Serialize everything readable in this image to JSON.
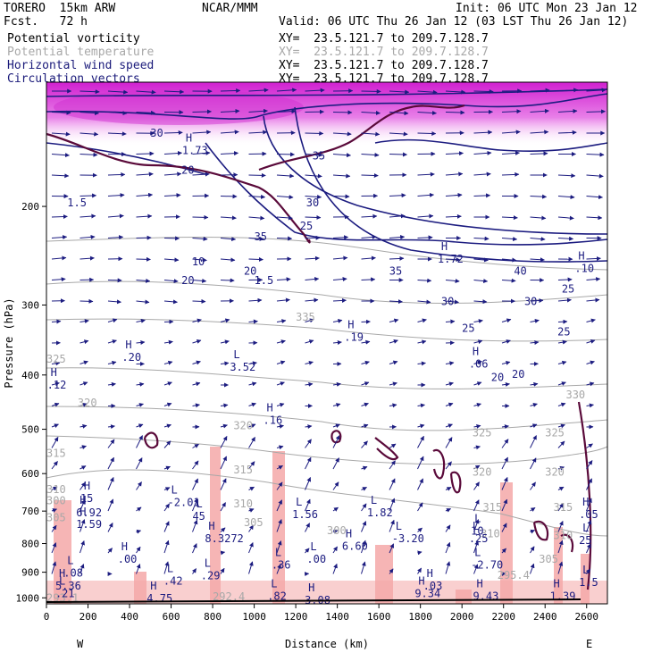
{
  "header": {
    "model": "TORERO  15km ARW",
    "center": "NCAR/MMM",
    "init": "Init: 06 UTC Mon 23 Jan 12",
    "fcst": "Fcst.   72 h",
    "valid": "Valid: 06 UTC Thu 26 Jan 12 (03 LST Thu 26 Jan 12)"
  },
  "legend": [
    {
      "label": "Potential vorticity",
      "xy": "XY=  23.5.121.7 to 209.7.128.7",
      "color": "#000000"
    },
    {
      "label": "Potential temperature",
      "xy": "XY=  23.5.121.7 to 209.7.128.7",
      "color": "#a8a8a8"
    },
    {
      "label": "Horizontal wind speed",
      "xy": "XY=  23.5.121.7 to 209.7.128.7",
      "color": "#1a1a7a"
    },
    {
      "label": "Circulation vectors",
      "xy": "XY=  23.5.121.7 to 209.7.128.7",
      "color": "#1a1a7a"
    }
  ],
  "colors": {
    "theta": "#a8a8a8",
    "wind": "#1c1c80",
    "pv": "#5a0a3a",
    "magenta": "#e040e0",
    "pink": "#f4a8a8"
  },
  "chart_data": {
    "type": "cross-section",
    "xlabel": "Distance (km)",
    "ylabel": "Pressure (hPa)",
    "x_ticks": [
      "0",
      "200",
      "400",
      "600",
      "800",
      "1000",
      "1200",
      "1400",
      "1600",
      "1800",
      "2000",
      "2200",
      "2400",
      "2600"
    ],
    "y_ticks": [
      "200",
      "300",
      "400",
      "500",
      "600",
      "700",
      "800",
      "900",
      "1000"
    ],
    "xlim": [
      0,
      2700
    ],
    "ylim": [
      1025,
      120
    ],
    "x_end_labels": {
      "left": "W",
      "right": "E"
    },
    "potential_temperature_labels": [
      {
        "text": "325",
        "x": 0,
        "p": 380
      },
      {
        "text": "320",
        "x": 150,
        "p": 455
      },
      {
        "text": "320",
        "x": 900,
        "p": 500
      },
      {
        "text": "315",
        "x": 0,
        "p": 560
      },
      {
        "text": "315",
        "x": 900,
        "p": 600
      },
      {
        "text": "310",
        "x": 0,
        "p": 650
      },
      {
        "text": "310",
        "x": 900,
        "p": 690
      },
      {
        "text": "305",
        "x": 0,
        "p": 730
      },
      {
        "text": "305",
        "x": 950,
        "p": 745
      },
      {
        "text": "300",
        "x": 1350,
        "p": 770
      },
      {
        "text": "335",
        "x": 1200,
        "p": 320
      },
      {
        "text": "330",
        "x": 2500,
        "p": 440
      },
      {
        "text": "325",
        "x": 2050,
        "p": 515
      },
      {
        "text": "325",
        "x": 2400,
        "p": 515
      },
      {
        "text": "320",
        "x": 2050,
        "p": 605
      },
      {
        "text": "320",
        "x": 2400,
        "p": 605
      },
      {
        "text": "315",
        "x": 2100,
        "p": 700
      },
      {
        "text": "315",
        "x": 2440,
        "p": 700
      },
      {
        "text": "310",
        "x": 2090,
        "p": 780
      },
      {
        "text": "310",
        "x": 2440,
        "p": 785
      },
      {
        "text": "305",
        "x": 2370,
        "p": 865
      },
      {
        "text": "300",
        "x": 0,
        "p": 680
      },
      {
        "text": "295.4",
        "x": 2170,
        "p": 925
      },
      {
        "text": "292.4",
        "x": 800,
        "p": 1010
      },
      {
        "text": "293.1",
        "x": 0,
        "p": 1015
      }
    ],
    "wind_speed_labels": [
      {
        "text": "30",
        "x": 500,
        "p": 150
      },
      {
        "text": "20",
        "x": 650,
        "p": 175
      },
      {
        "text": "10",
        "x": 700,
        "p": 255
      },
      {
        "text": "25",
        "x": 1220,
        "p": 220
      },
      {
        "text": "30",
        "x": 1250,
        "p": 200
      },
      {
        "text": "35",
        "x": 1280,
        "p": 165
      },
      {
        "text": "20",
        "x": 950,
        "p": 265
      },
      {
        "text": "1.5",
        "x": 1000,
        "p": 275
      },
      {
        "text": "35",
        "x": 1650,
        "p": 265
      },
      {
        "text": "40",
        "x": 2250,
        "p": 265
      },
      {
        "text": "30",
        "x": 1900,
        "p": 300
      },
      {
        "text": "30",
        "x": 2300,
        "p": 300
      },
      {
        "text": "25",
        "x": 2480,
        "p": 285
      },
      {
        "text": "25",
        "x": 2000,
        "p": 335
      },
      {
        "text": "25",
        "x": 2460,
        "p": 340
      },
      {
        "text": "20",
        "x": 2140,
        "p": 410
      },
      {
        "text": "20",
        "x": 2240,
        "p": 405
      },
      {
        "text": "35",
        "x": 1000,
        "p": 230
      },
      {
        "text": "1.5",
        "x": 100,
        "p": 200
      },
      {
        "text": "20",
        "x": 650,
        "p": 275
      }
    ],
    "extrema_labels": [
      {
        "mark": "H",
        "value": ".20",
        "x": 380,
        "p": 375
      },
      {
        "mark": "H",
        "value": ".12",
        "x": 20,
        "p": 420
      },
      {
        "mark": "L",
        "value": "3.52",
        "x": 900,
        "p": 390
      },
      {
        "mark": "H",
        "value": ".19",
        "x": 1450,
        "p": 345
      },
      {
        "mark": "H",
        "value": ".06",
        "x": 2050,
        "p": 385
      },
      {
        "mark": "H",
        "value": ".16",
        "x": 1060,
        "p": 485
      },
      {
        "mark": "H",
        "value": "1.72",
        "x": 1900,
        "p": 250
      },
      {
        "mark": "H",
        "value": "1.73",
        "x": 670,
        "p": 160
      },
      {
        "mark": "H",
        "value": ".10",
        "x": 2560,
        "p": 260
      },
      {
        "mark": "H",
        "value": "15",
        "x": 180,
        "p": 670
      },
      {
        "mark": "H",
        "value": "6.92",
        "x": 160,
        "p": 710
      },
      {
        "mark": "H",
        "value": "1.59",
        "x": 160,
        "p": 745
      },
      {
        "mark": "L",
        "value": "-2.01",
        "x": 600,
        "p": 680
      },
      {
        "mark": "L",
        "value": "45",
        "x": 720,
        "p": 720
      },
      {
        "mark": "L",
        "value": "1.56",
        "x": 1200,
        "p": 715
      },
      {
        "mark": "L",
        "value": "1.82",
        "x": 1560,
        "p": 710
      },
      {
        "mark": "H",
        "value": "8.3272",
        "x": 780,
        "p": 790
      },
      {
        "mark": "L",
        "value": "-3.20",
        "x": 1680,
        "p": 790
      },
      {
        "mark": "L",
        "value": ".25",
        "x": 2050,
        "p": 790
      },
      {
        "mark": "L",
        "value": "10",
        "x": 2060,
        "p": 765
      },
      {
        "mark": "H",
        "value": "6.60",
        "x": 1440,
        "p": 815
      },
      {
        "mark": "H",
        "value": ".00",
        "x": 360,
        "p": 860
      },
      {
        "mark": "L",
        "value": ".00",
        "x": 1270,
        "p": 860
      },
      {
        "mark": "L",
        "value": ".36",
        "x": 1100,
        "p": 880
      },
      {
        "mark": "L",
        "value": "-2.70",
        "x": 2060,
        "p": 880
      },
      {
        "mark": "L",
        "value": ".08",
        "x": 100,
        "p": 910
      },
      {
        "mark": "L",
        "value": ".29",
        "x": 760,
        "p": 920
      },
      {
        "mark": "L",
        "value": ".42",
        "x": 580,
        "p": 940
      },
      {
        "mark": "H",
        "value": "5.36",
        "x": 60,
        "p": 960
      },
      {
        "mark": "L",
        "value": ".21",
        "x": 60,
        "p": 990
      },
      {
        "mark": "H",
        "value": ".03",
        "x": 1830,
        "p": 960
      },
      {
        "mark": "H",
        "value": "9.34",
        "x": 1790,
        "p": 990
      },
      {
        "mark": "H",
        "value": "9.43",
        "x": 2070,
        "p": 1000
      },
      {
        "mark": "H",
        "value": "4.75",
        "x": 500,
        "p": 1010
      },
      {
        "mark": "H",
        "value": "1.39",
        "x": 2440,
        "p": 1000
      },
      {
        "mark": "L",
        "value": ".82",
        "x": 1080,
        "p": 1000
      },
      {
        "mark": "H",
        "value": "3.08",
        "x": 1260,
        "p": 1018
      },
      {
        "mark": "H",
        "value": ".05",
        "x": 2580,
        "p": 715
      },
      {
        "mark": "L",
        "value": "25",
        "x": 2580,
        "p": 795
      },
      {
        "mark": "L",
        "value": "1.5",
        "x": 2580,
        "p": 945
      }
    ]
  }
}
